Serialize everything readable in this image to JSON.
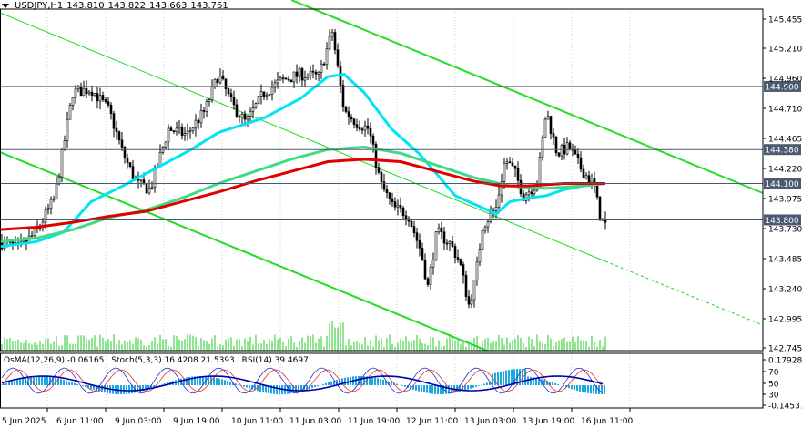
{
  "header": {
    "symbol": "USDJPY,H1",
    "ohlc": [
      "143.810",
      "143.822",
      "143.663",
      "143.761"
    ]
  },
  "price_axis": {
    "ticks": [
      "145.455",
      "145.210",
      "144.960",
      "144.710",
      "144.465",
      "144.220",
      "143.975",
      "143.730",
      "143.485",
      "143.240",
      "142.995",
      "142.745"
    ],
    "levels": [
      {
        "value": "144.900",
        "color": "#4a5a70"
      },
      {
        "value": "144.380",
        "color": "#4a5a70"
      },
      {
        "value": "144.100",
        "color": "#4a5a70"
      },
      {
        "value": "143.800",
        "color": "#4a5a70"
      }
    ]
  },
  "time_axis": {
    "labels": [
      "5 Jun 2025",
      "6 Jun 11:00",
      "9 Jun 03:00",
      "9 Jun 19:00",
      "10 Jun 11:00",
      "11 Jun 03:00",
      "11 Jun 19:00",
      "12 Jun 11:00",
      "13 Jun 03:00",
      "13 Jun 19:00",
      "16 Jun 11:00"
    ]
  },
  "indicator": {
    "osma_label": "OsMA(12,26,9) -0.06165",
    "stoch_label": "Stoch(5,3,3) 16.4208 21.5393",
    "rsi_label": "RSI(14) 39.4697",
    "axis_ticks": [
      "0.17928",
      "70",
      "50",
      "30",
      "-0.14537"
    ]
  },
  "colors": {
    "up_candle": "#000000",
    "ma_fast": "#00e5f5",
    "ma_mid": "#3ddc84",
    "ma_slow": "#e00000",
    "channel": "#22dd22",
    "volume": "#22cc22",
    "osma_hist": "#1ea8e0",
    "stoch_main": "#2030d0",
    "stoch_signal": "#e03030",
    "rsi": "#0000aa"
  }
}
